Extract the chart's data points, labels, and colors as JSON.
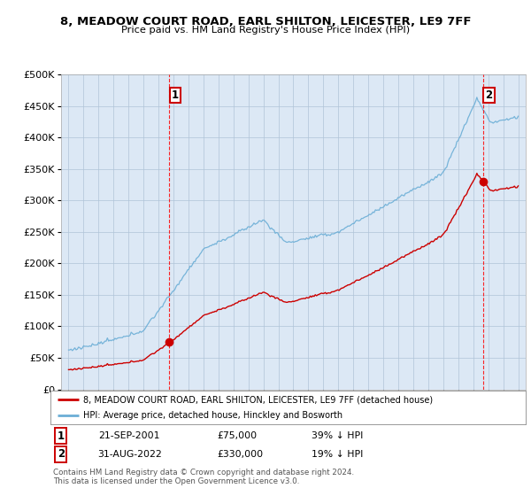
{
  "title": "8, MEADOW COURT ROAD, EARL SHILTON, LEICESTER, LE9 7FF",
  "subtitle": "Price paid vs. HM Land Registry's House Price Index (HPI)",
  "hpi_label": "HPI: Average price, detached house, Hinckley and Bosworth",
  "property_label": "8, MEADOW COURT ROAD, EARL SHILTON, LEICESTER, LE9 7FF (detached house)",
  "sale1_date": "21-SEP-2001",
  "sale1_price": "£75,000",
  "sale1_hpi": "39% ↓ HPI",
  "sale2_date": "31-AUG-2022",
  "sale2_price": "£330,000",
  "sale2_hpi": "19% ↓ HPI",
  "sale1_x": 2001.73,
  "sale1_y": 75000,
  "sale2_x": 2022.66,
  "sale2_y": 330000,
  "hpi_color": "#6baed6",
  "property_color": "#cc0000",
  "vline_color": "#ff0000",
  "background_color": "#ffffff",
  "chart_bg_color": "#dce8f5",
  "grid_color": "#b0c4d8",
  "ylim": [
    0,
    500000
  ],
  "xlim": [
    1994.5,
    2025.5
  ],
  "footer": "Contains HM Land Registry data © Crown copyright and database right 2024.\nThis data is licensed under the Open Government Licence v3.0."
}
